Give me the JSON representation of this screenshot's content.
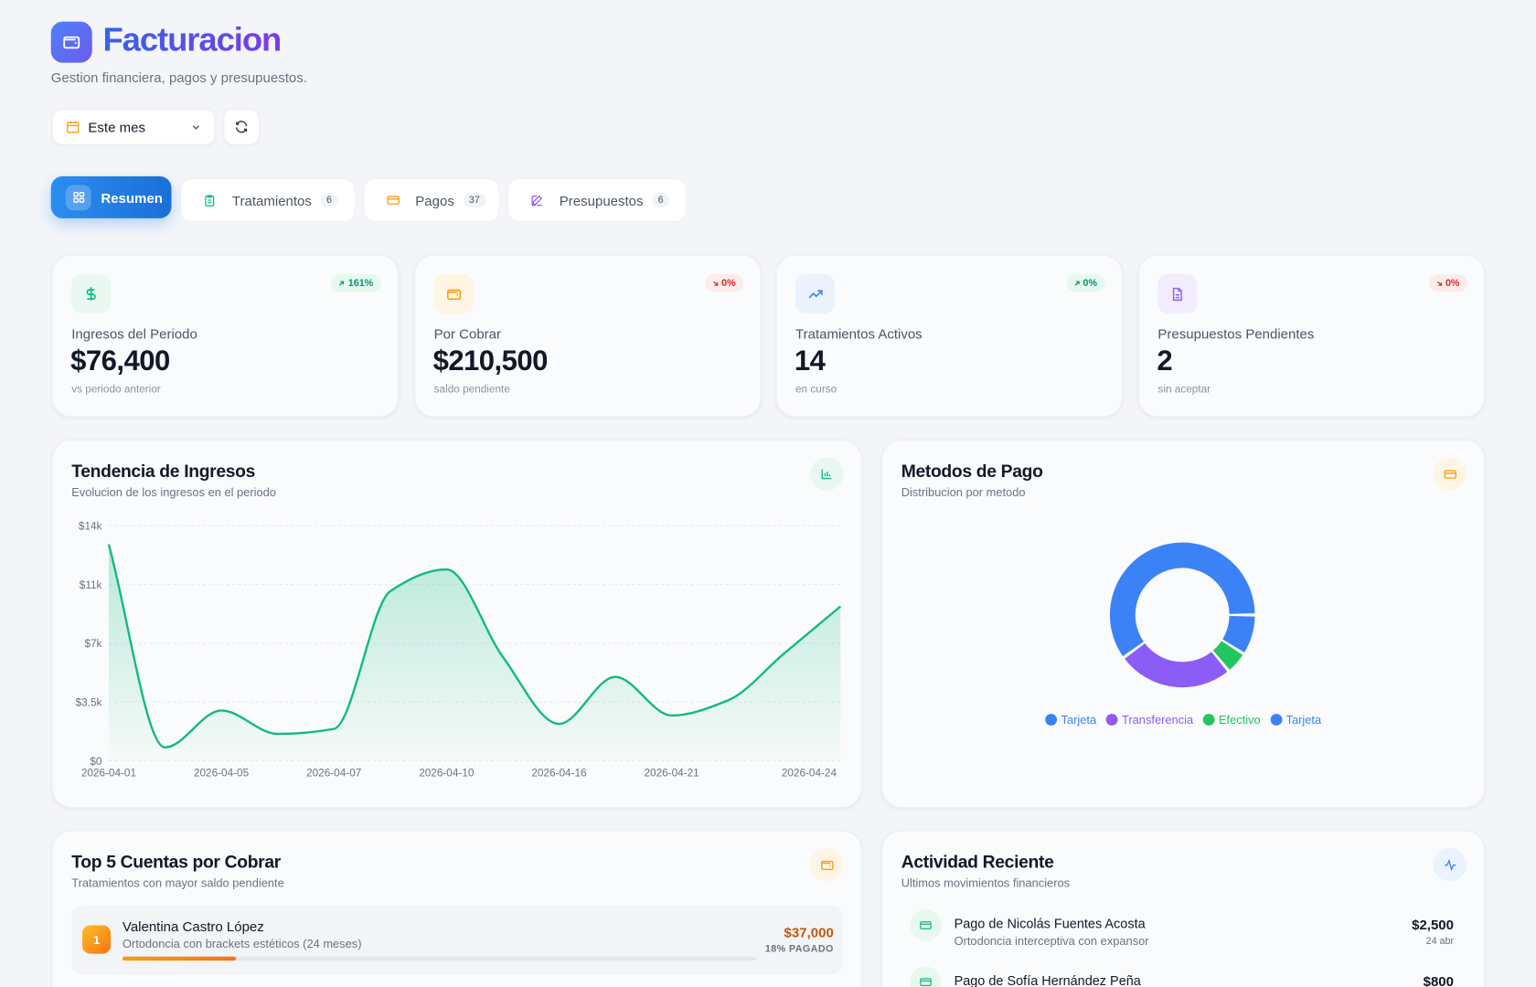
{
  "header": {
    "title": "Facturacion",
    "subtitle": "Gestion financiera, pagos y presupuestos."
  },
  "filters": {
    "period": "Este mes"
  },
  "tabs": [
    {
      "label": "Resumen",
      "active": true
    },
    {
      "label": "Tratamientos",
      "count": 6
    },
    {
      "label": "Pagos",
      "count": 37
    },
    {
      "label": "Presupuestos",
      "count": 6
    }
  ],
  "stats": [
    {
      "label": "Ingresos del Periodo",
      "value": "$76,400",
      "note": "vs periodo anterior",
      "change": "161%",
      "trend": "up"
    },
    {
      "label": "Por Cobrar",
      "value": "$210,500",
      "note": "saldo pendiente",
      "change": "0%",
      "trend": "down"
    },
    {
      "label": "Tratamientos Activos",
      "value": "14",
      "note": "en curso",
      "change": "0%",
      "trend": "up"
    },
    {
      "label": "Presupuestos Pendientes",
      "value": "2",
      "note": "sin aceptar",
      "change": "0%",
      "trend": "down"
    }
  ],
  "revenue_chart": {
    "type": "line",
    "title": "Tendencia de Ingresos",
    "subtitle": "Evolucion de los ingresos en el periodo",
    "categories": [
      "2026-04-01",
      null,
      "2026-04-05",
      null,
      "2026-04-07",
      null,
      "2026-04-10",
      null,
      "2026-04-16",
      null,
      "2026-04-21",
      null,
      null,
      "2026-04-24"
    ],
    "values": [
      12900,
      800,
      3000,
      1600,
      1900,
      10100,
      11400,
      6200,
      2200,
      5000,
      2700,
      3600,
      6400,
      9200
    ],
    "color": "#10b981",
    "ylim": [
      0,
      14000
    ],
    "yticks": [
      {
        "value": 0,
        "label": "$0"
      },
      {
        "value": 3500,
        "label": "$3.5k"
      },
      {
        "value": 7000,
        "label": "$7k"
      },
      {
        "value": 10500,
        "label": "$11k"
      },
      {
        "value": 14000,
        "label": "$14k"
      }
    ],
    "grid": true
  },
  "payment_methods": {
    "type": "pie",
    "title": "Metodos de Pago",
    "subtitle": "Distribucion por metodo",
    "categories": [
      "Tarjeta",
      "Transferencia",
      "Efectivo",
      "Tarjeta"
    ],
    "values": [
      60,
      26,
      5,
      9
    ],
    "colors": [
      "#3b82f6",
      "#8b5cf6",
      "#22c55e",
      "#3b82f6"
    ]
  },
  "receivables": {
    "title": "Top 5 Cuentas por Cobrar",
    "subtitle": "Tratamientos con mayor saldo pendiente",
    "items": [
      {
        "rank": 1,
        "name": "Valentina Castro López",
        "treatment": "Ortodoncia con brackets estéticos (24 meses)",
        "amount": "$37,000",
        "paid": {
          "value": 18,
          "label": "18% PAGADO"
        }
      }
    ]
  },
  "activity": {
    "title": "Actividad Reciente",
    "subtitle": "Ultimos movimientos financieros",
    "items": [
      {
        "title": "Pago de Nicolás Fuentes Acosta",
        "detail": "Ortodoncia interceptiva con expansor",
        "amount": "$2,500",
        "date": "24 abr"
      },
      {
        "title": "Pago de Sofía Hernández Peña",
        "amount": "$800"
      }
    ]
  }
}
